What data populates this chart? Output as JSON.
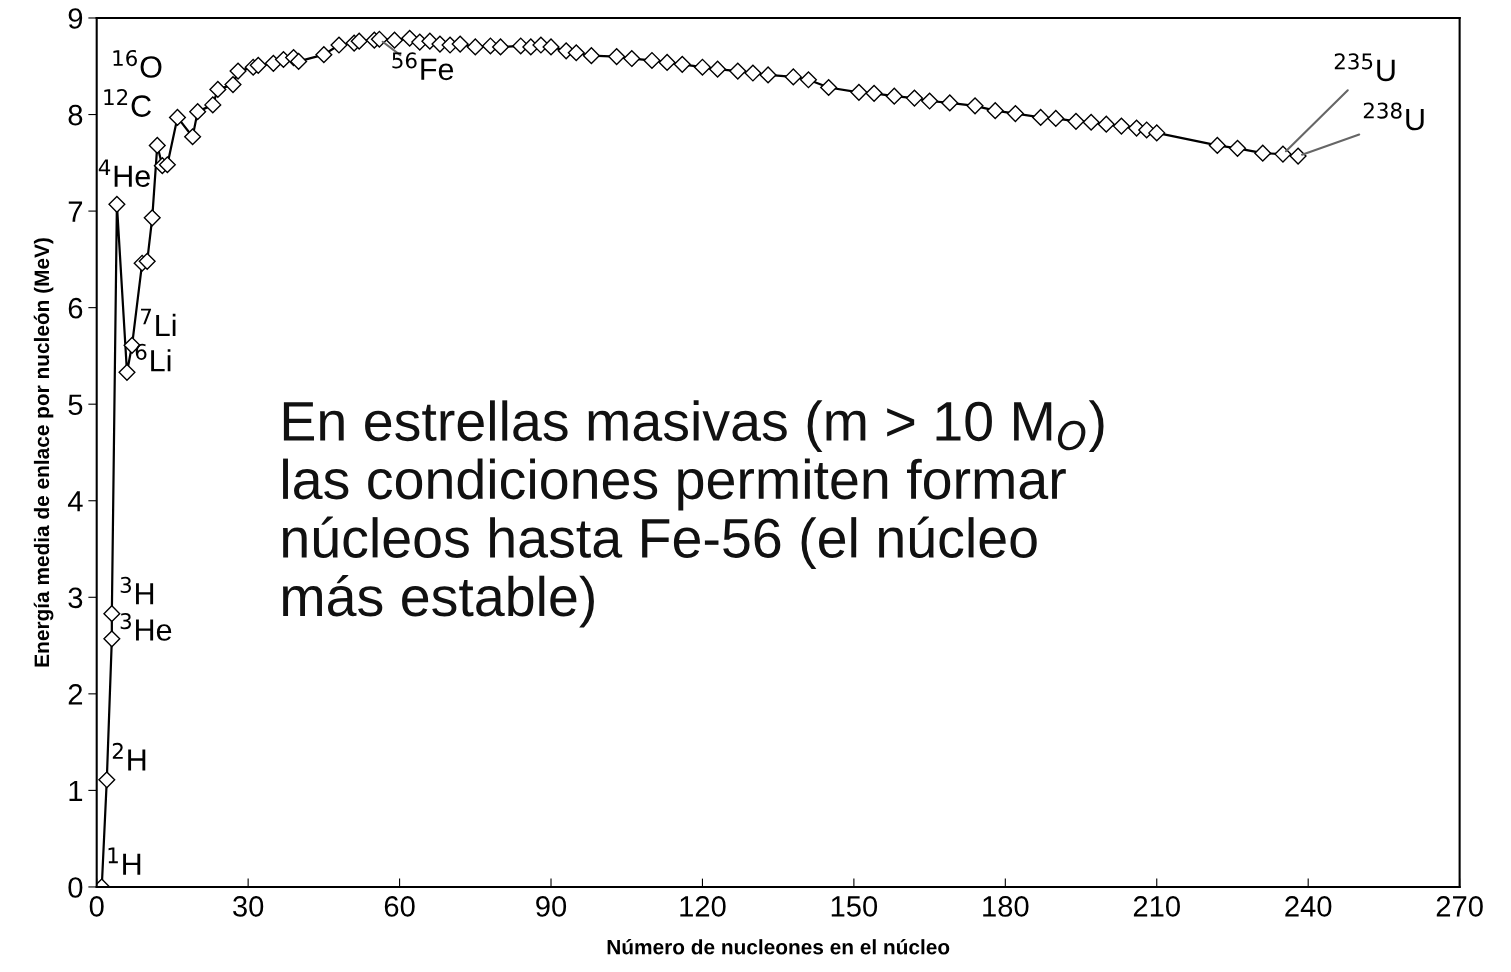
{
  "chart_data": {
    "type": "line",
    "xlabel": "Número de nucleones en el núcleo",
    "ylabel": "Energía media de enlace por nucleón (MeV)",
    "xlim": [
      0,
      270
    ],
    "xticks": [
      0,
      30,
      60,
      90,
      120,
      150,
      180,
      210,
      240,
      270
    ],
    "ylim": [
      0,
      9
    ],
    "yticks": [
      0,
      1,
      2,
      3,
      4,
      5,
      6,
      7,
      8,
      9
    ],
    "grid": false,
    "legend": false,
    "marker": "diamond",
    "line_style": "solid",
    "series": [
      {
        "color": "#000000",
        "x": [
          1,
          2,
          3,
          3,
          4,
          6,
          7,
          9,
          10,
          11,
          12,
          13,
          14,
          16,
          19,
          20,
          23,
          24,
          27,
          28,
          31,
          32,
          35,
          37,
          39,
          40,
          45,
          48,
          51,
          52,
          55,
          56,
          59,
          62,
          64,
          66,
          68,
          70,
          72,
          75,
          78,
          80,
          84,
          86,
          88,
          90,
          93,
          95,
          98,
          103,
          106,
          110,
          113,
          116,
          120,
          123,
          127,
          130,
          133,
          138,
          141,
          145,
          151,
          154,
          158,
          162,
          165,
          169,
          174,
          178,
          182,
          187,
          190,
          194,
          197,
          200,
          203,
          206,
          208,
          210,
          222,
          226,
          231,
          235,
          238
        ],
        "values": [
          0,
          1.11,
          2.57,
          2.83,
          7.07,
          5.33,
          5.61,
          6.46,
          6.48,
          6.93,
          7.68,
          7.47,
          7.48,
          7.97,
          7.77,
          8.03,
          8.1,
          8.26,
          8.31,
          8.45,
          8.49,
          8.51,
          8.53,
          8.57,
          8.59,
          8.55,
          8.62,
          8.72,
          8.74,
          8.76,
          8.77,
          8.78,
          8.77,
          8.79,
          8.75,
          8.76,
          8.73,
          8.72,
          8.73,
          8.7,
          8.71,
          8.7,
          8.71,
          8.7,
          8.72,
          8.7,
          8.66,
          8.64,
          8.61,
          8.6,
          8.58,
          8.56,
          8.54,
          8.52,
          8.49,
          8.47,
          8.45,
          8.43,
          8.41,
          8.39,
          8.36,
          8.28,
          8.23,
          8.22,
          8.19,
          8.17,
          8.14,
          8.12,
          8.09,
          8.04,
          8.01,
          7.97,
          7.96,
          7.93,
          7.92,
          7.9,
          7.88,
          7.86,
          7.84,
          7.81,
          7.68,
          7.65,
          7.6,
          7.59,
          7.57
        ]
      }
    ],
    "annotations": [
      {
        "text": "$^{1}$H",
        "x": 1,
        "y": 0
      },
      {
        "text": "$^{2}$H",
        "x": 2,
        "y": 1.11
      },
      {
        "text": "$^{3}$He",
        "x": 3,
        "y": 2.57
      },
      {
        "text": "$^{3}$H",
        "x": 3,
        "y": 2.83
      },
      {
        "text": "$^{4}$He",
        "x": 4,
        "y": 7.07
      },
      {
        "text": "$^{6}$Li",
        "x": 6,
        "y": 5.33
      },
      {
        "text": "$^{7}$Li",
        "x": 7,
        "y": 5.61
      },
      {
        "text": "$^{12}$C",
        "x": 12,
        "y": 7.68
      },
      {
        "text": "$^{16}$O",
        "x": 16,
        "y": 7.97
      },
      {
        "text": "$^{56}$Fe",
        "x": 56,
        "y": 8.78
      },
      {
        "text": "$^{235}$U",
        "x": 235,
        "y": 7.59
      },
      {
        "text": "$^{238}$U",
        "x": 238,
        "y": 7.57
      },
      "En estrellas masivas (m > 10 M$_{O}$)\nlas condiciones permiten formar\nnúcleos hasta Fe-56 (el núcleo\nmás estable)"
    ]
  }
}
